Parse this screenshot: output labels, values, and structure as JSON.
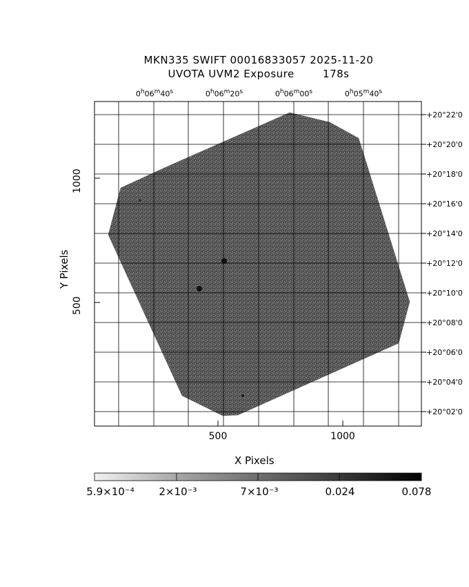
{
  "title_line1": "MKN335 SWIFT 00016833057 2025-11-20",
  "title_line2": "UVOTA UVM2 Exposure",
  "exposure": "178s",
  "x_axis_label": "X Pixels",
  "y_axis_label": "Y Pixels",
  "x_ticks": [
    "500",
    "1000"
  ],
  "y_ticks": [
    "500",
    "1000"
  ],
  "ra_ticks": [
    {
      "h": "0",
      "m": "06",
      "s": "40"
    },
    {
      "h": "0",
      "m": "06",
      "s": "20"
    },
    {
      "h": "0",
      "m": "06",
      "s": "00"
    },
    {
      "h": "0",
      "m": "05",
      "s": "40"
    }
  ],
  "dec_ticks": [
    "+20°22'0",
    "+20°20'0",
    "+20°18'0",
    "+20°16'0",
    "+20°14'0",
    "+20°12'0",
    "+20°10'0",
    "+20°08'0",
    "+20°06'0",
    "+20°04'0",
    "+20°02'0"
  ],
  "colorbar": {
    "labels": [
      "5.9×10⁻⁴",
      "2×10⁻³",
      "7×10⁻³",
      "0.024",
      "0.078"
    ],
    "min_color": "#f2f2f2",
    "max_color": "#000000"
  },
  "image_colors": {
    "field_fill": "#5a5a5a",
    "speckle": "#8c8c8c"
  }
}
